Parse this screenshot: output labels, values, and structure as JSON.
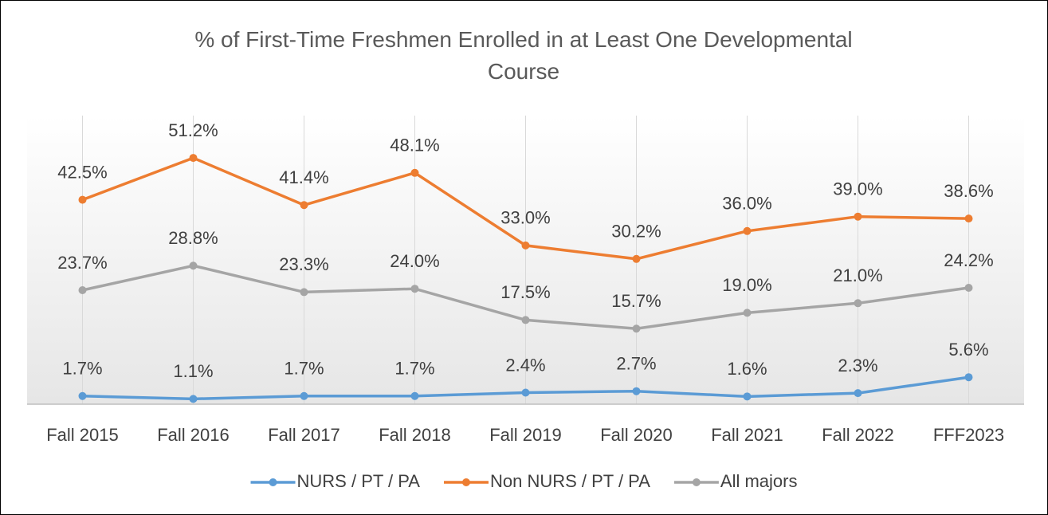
{
  "chart_data": {
    "type": "line",
    "title": "% of First-Time Freshmen Enrolled in at Least One Developmental Course",
    "categories": [
      "Fall 2015",
      "Fall 2016",
      "Fall 2017",
      "Fall 2018",
      "Fall 2019",
      "Fall 2020",
      "Fall 2021",
      "Fall 2022",
      "FFF2023"
    ],
    "series": [
      {
        "name": "NURS / PT / PA",
        "color": "#5b9bd5",
        "values": [
          1.7,
          1.1,
          1.7,
          1.7,
          2.4,
          2.7,
          1.6,
          2.3,
          5.6
        ],
        "value_labels": [
          "1.7%",
          "1.1%",
          "1.7%",
          "1.7%",
          "2.4%",
          "2.7%",
          "1.6%",
          "2.3%",
          "5.6%"
        ]
      },
      {
        "name": "Non NURS / PT / PA",
        "color": "#ed7d31",
        "values": [
          42.5,
          51.2,
          41.4,
          48.1,
          33.0,
          30.2,
          36.0,
          39.0,
          38.6
        ],
        "value_labels": [
          "42.5%",
          "51.2%",
          "41.4%",
          "48.1%",
          "33.0%",
          "30.2%",
          "36.0%",
          "39.0%",
          "38.6%"
        ]
      },
      {
        "name": "All majors",
        "color": "#a5a5a5",
        "values": [
          23.7,
          28.8,
          23.3,
          24.0,
          17.5,
          15.7,
          19.0,
          21.0,
          24.2
        ],
        "value_labels": [
          "23.7%",
          "28.8%",
          "23.3%",
          "24.0%",
          "17.5%",
          "15.7%",
          "19.0%",
          "21.0%",
          "24.2%"
        ]
      }
    ],
    "ylim": [
      0,
      60
    ],
    "legend": "bottom"
  }
}
